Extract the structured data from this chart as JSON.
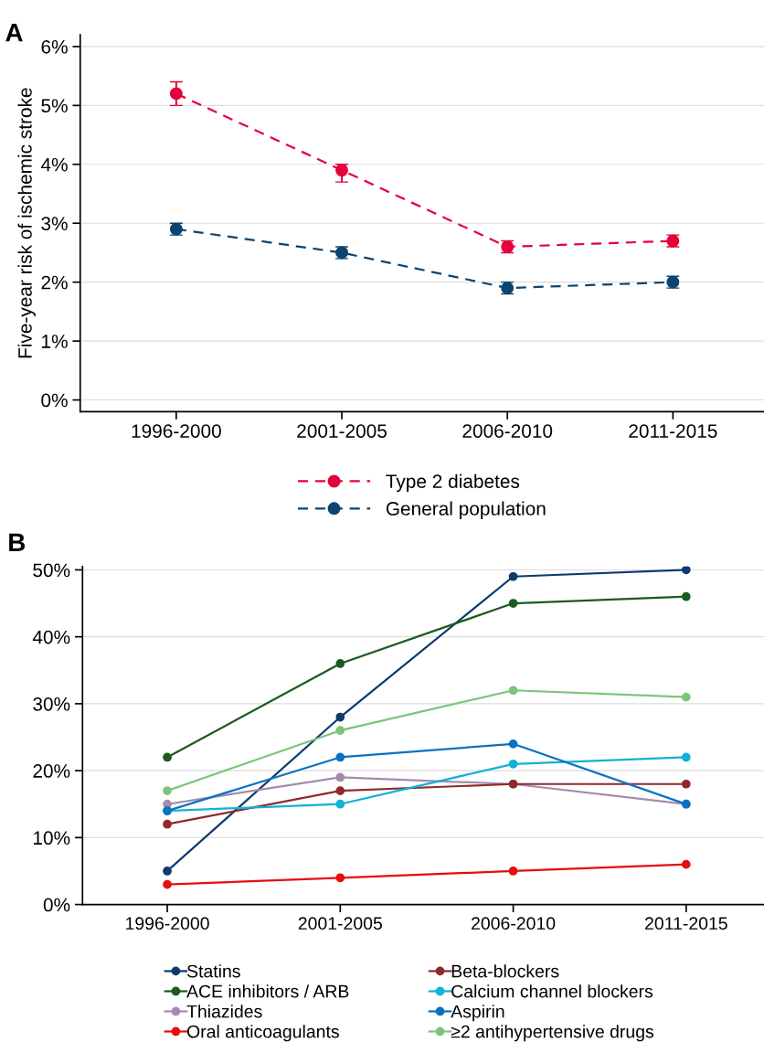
{
  "chart_data": [
    {
      "type": "line",
      "ylabel": "Five-year risk of ischemic stroke",
      "annotations": [
        "A"
      ],
      "categories": [
        "1996-2000",
        "2001-2005",
        "2006-2010",
        "2011-2015"
      ],
      "series": [
        {
          "name": "Type 2 diabetes",
          "color": "#e4003a",
          "values": [
            5.2,
            3.9,
            2.6,
            2.7
          ],
          "errors": [
            [
              5.0,
              5.4
            ],
            [
              3.7,
              4.0
            ],
            [
              2.5,
              2.7
            ],
            [
              2.6,
              2.8
            ]
          ]
        },
        {
          "name": "General population",
          "color": "#0b4470",
          "values": [
            2.9,
            2.5,
            1.9,
            2.0
          ],
          "errors": [
            [
              2.8,
              3.0
            ],
            [
              2.4,
              2.6
            ],
            [
              1.8,
              2.0
            ],
            [
              1.9,
              2.1
            ]
          ]
        }
      ],
      "ylim": [
        -0.2,
        6.2
      ],
      "yticks": [
        {
          "value": 0,
          "label": "0%"
        },
        {
          "value": 1,
          "label": "1%"
        },
        {
          "value": 2,
          "label": "2%"
        },
        {
          "value": 3,
          "label": "3%"
        },
        {
          "value": 4,
          "label": "4%"
        },
        {
          "value": 5,
          "label": "5%"
        },
        {
          "value": 6,
          "label": "6%"
        }
      ],
      "grid": "y",
      "legend": "bottom",
      "marker": "circle",
      "line_style": "dashed"
    },
    {
      "type": "line",
      "annotations": [
        "B"
      ],
      "categories": [
        "1996-2000",
        "2001-2005",
        "2006-2010",
        "2011-2015"
      ],
      "series": [
        {
          "name": "Statins",
          "color": "#0d3b6e",
          "values": [
            5,
            28,
            49,
            50
          ]
        },
        {
          "name": "ACE inhibitors / ARB",
          "color": "#1d5a1d",
          "values": [
            22,
            36,
            45,
            46
          ]
        },
        {
          "name": "Thiazides",
          "color": "#a48bac",
          "values": [
            15,
            19,
            18,
            15
          ]
        },
        {
          "name": "Oral anticoagulants",
          "color": "#e60d0d",
          "values": [
            3,
            4,
            5,
            6
          ]
        },
        {
          "name": "Beta-blockers",
          "color": "#8e2a2e",
          "values": [
            12,
            17,
            18,
            18
          ]
        },
        {
          "name": "Calcium channel blockers",
          "color": "#12b1d6",
          "values": [
            14,
            15,
            21,
            22
          ]
        },
        {
          "name": "Aspirin",
          "color": "#0a72c0",
          "values": [
            14,
            22,
            24,
            15
          ]
        },
        {
          "name": "≥2 antihypertensive drugs",
          "color": "#7cc47a",
          "values": [
            17,
            26,
            32,
            31
          ]
        }
      ],
      "ylim": [
        0,
        50.5
      ],
      "yticks": [
        {
          "value": 0,
          "label": "0%"
        },
        {
          "value": 10,
          "label": "10%"
        },
        {
          "value": 20,
          "label": "20%"
        },
        {
          "value": 30,
          "label": "30%"
        },
        {
          "value": 40,
          "label": "40%"
        },
        {
          "value": 50,
          "label": "50%"
        }
      ],
      "grid": "y",
      "legend": "bottom",
      "marker": "circle",
      "line_style": "solid"
    }
  ]
}
